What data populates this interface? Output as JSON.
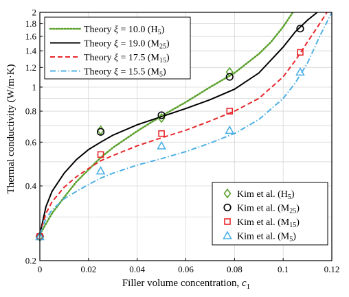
{
  "chart_data": {
    "type": "line",
    "xlabel": "Filler volume concentration,",
    "xlabel_symbol": "c",
    "xlabel_subscript": "1",
    "ylabel": "Thermal conductivity (W/m·K)",
    "xlim": [
      0,
      0.12
    ],
    "ylim": [
      0.2,
      2
    ],
    "yscale": "log",
    "grid": true,
    "x_ticks": [
      0,
      0.02,
      0.04,
      0.06,
      0.08,
      0.1,
      0.12
    ],
    "x_tick_labels": [
      "0",
      "0.02",
      "0.04",
      "0.06",
      "0.08",
      "0.1",
      "0.12"
    ],
    "y_ticks": [
      0.2,
      0.4,
      0.6,
      0.8,
      1,
      1.2,
      1.4,
      1.6,
      1.8,
      2
    ],
    "y_tick_labels": [
      "0.2",
      "0.4",
      "0.6",
      "0.8",
      "1",
      "1.2",
      "1.4",
      "1.6",
      "1.8",
      "2"
    ],
    "y_minor_ticks": [
      0.3,
      0.5,
      0.7,
      0.9
    ],
    "theory_legend_position": "top-left",
    "data_legend_position": "bottom-right",
    "series": [
      {
        "name": "Theory ξ = 10.0 (H5)",
        "prefix": "Theory ",
        "symbol": "ξ",
        "rest": " = 10.0 (H",
        "sub": "5",
        "suffix": ")",
        "kind": "line",
        "style": "dotted",
        "color": "#5aa02c",
        "x": [
          0,
          0.005,
          0.01,
          0.015,
          0.02,
          0.025,
          0.03,
          0.04,
          0.05,
          0.06,
          0.07,
          0.08,
          0.09,
          0.095,
          0.1,
          0.104
        ],
        "y": [
          0.255,
          0.31,
          0.36,
          0.415,
          0.465,
          0.52,
          0.57,
          0.665,
          0.765,
          0.87,
          1.0,
          1.14,
          1.36,
          1.52,
          1.75,
          2.0
        ]
      },
      {
        "name": "Theory ξ = 19.0 (M25)",
        "prefix": "Theory ",
        "symbol": "ξ",
        "rest": " = 19.0 (M",
        "sub": "25",
        "suffix": ")",
        "kind": "line",
        "style": "solid",
        "color": "#000000",
        "x": [
          0,
          0.0025,
          0.005,
          0.01,
          0.015,
          0.02,
          0.025,
          0.03,
          0.04,
          0.05,
          0.06,
          0.07,
          0.08,
          0.09,
          0.1,
          0.105,
          0.11,
          0.114
        ],
        "y": [
          0.255,
          0.33,
          0.38,
          0.45,
          0.51,
          0.56,
          0.6,
          0.64,
          0.705,
          0.76,
          0.82,
          0.89,
          0.98,
          1.14,
          1.45,
          1.67,
          1.86,
          2.0
        ]
      },
      {
        "name": "Theory ξ = 17.5 (M15)",
        "prefix": "Theory ",
        "symbol": "ξ",
        "rest": " = 17.5 (M",
        "sub": "15",
        "suffix": ")",
        "kind": "line",
        "style": "dashed",
        "color": "#e8262a",
        "x": [
          0,
          0.0025,
          0.005,
          0.01,
          0.015,
          0.02,
          0.025,
          0.03,
          0.04,
          0.05,
          0.06,
          0.07,
          0.08,
          0.09,
          0.1,
          0.105,
          0.11,
          0.115,
          0.118
        ],
        "y": [
          0.255,
          0.31,
          0.345,
          0.395,
          0.435,
          0.47,
          0.505,
          0.53,
          0.58,
          0.625,
          0.67,
          0.73,
          0.8,
          0.9,
          1.1,
          1.28,
          1.52,
          1.8,
          2.0
        ]
      },
      {
        "name": "Theory ξ = 15.5 (M5)",
        "prefix": "Theory ",
        "symbol": "ξ",
        "rest": " = 15.5 (M",
        "sub": "5",
        "suffix": ")",
        "kind": "line",
        "style": "dashdot",
        "color": "#4db0e6",
        "x": [
          0,
          0.0025,
          0.005,
          0.01,
          0.015,
          0.02,
          0.025,
          0.03,
          0.04,
          0.05,
          0.06,
          0.07,
          0.08,
          0.09,
          0.1,
          0.105,
          0.11,
          0.115,
          0.12
        ],
        "y": [
          0.255,
          0.295,
          0.32,
          0.355,
          0.38,
          0.405,
          0.43,
          0.45,
          0.485,
          0.515,
          0.55,
          0.595,
          0.65,
          0.74,
          0.9,
          1.04,
          1.25,
          1.6,
          2.0
        ]
      },
      {
        "name": "Kim et al. (H5)",
        "prefix": "Kim et al. (H",
        "sub": "5",
        "suffix": ")",
        "kind": "marker",
        "marker": "diamond",
        "color": "#5aa02c",
        "x": [
          0,
          0.025,
          0.05,
          0.078
        ],
        "y": [
          0.25,
          0.67,
          0.75,
          1.15
        ]
      },
      {
        "name": "Kim et al. (M25)",
        "prefix": "Kim et al. (M",
        "sub": "25",
        "suffix": ")",
        "kind": "marker",
        "marker": "circle",
        "color": "#000000",
        "x": [
          0,
          0.025,
          0.05,
          0.078,
          0.107
        ],
        "y": [
          0.25,
          0.66,
          0.77,
          1.1,
          1.72
        ]
      },
      {
        "name": "Kim et al. (M15)",
        "prefix": "Kim et al. (M",
        "sub": "15",
        "suffix": ")",
        "kind": "marker",
        "marker": "square",
        "color": "#e8262a",
        "x": [
          0,
          0.025,
          0.05,
          0.078,
          0.107
        ],
        "y": [
          0.25,
          0.535,
          0.65,
          0.8,
          1.38
        ]
      },
      {
        "name": "Kim et al. (M5)",
        "prefix": "Kim et al. (M",
        "sub": "5",
        "suffix": ")",
        "kind": "marker",
        "marker": "triangle",
        "color": "#4db0e6",
        "x": [
          0,
          0.025,
          0.05,
          0.078,
          0.107
        ],
        "y": [
          0.25,
          0.46,
          0.58,
          0.67,
          1.15
        ]
      }
    ]
  }
}
